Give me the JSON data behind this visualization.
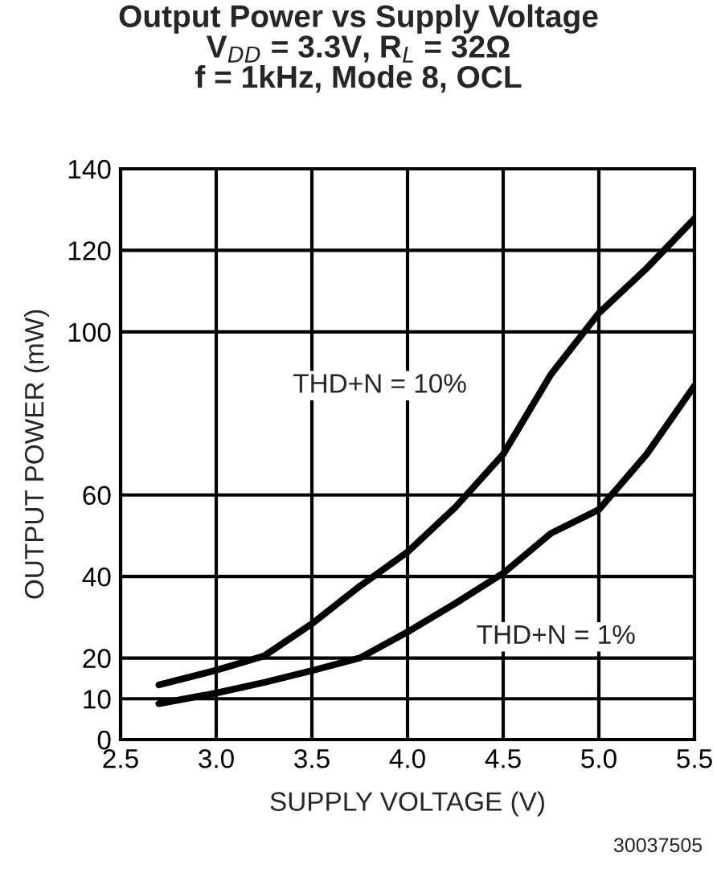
{
  "chart_data": {
    "type": "line",
    "title": "Output Power vs Supply Voltage\nV$_{DD}$ = 3.3V, R$_{L}$ = 32Ω\nf = 1kHz, Mode 8, OCL",
    "xlabel": "SUPPLY VOLTAGE (V)",
    "ylabel": "OUTPUT POWER (mW)",
    "x": [
      2.7,
      3.0,
      3.25,
      3.5,
      3.75,
      4.0,
      4.25,
      4.5,
      4.75,
      5.0,
      5.25,
      5.5
    ],
    "series": [
      {
        "color": "#000000",
        "values": [
          13.4,
          17,
          20.5,
          28.4,
          37.6,
          46,
          57,
          70,
          89.6,
          104.6,
          115.6,
          127.8
        ]
      },
      {
        "color": "#000000",
        "values": [
          8.8,
          11.4,
          14,
          16.9,
          20,
          26.4,
          33.4,
          40.8,
          50.6,
          56.4,
          70,
          86.8
        ]
      }
    ],
    "xlim": [
      2.5,
      5.5
    ],
    "xticks": [
      {
        "value": 2.5,
        "label": "2.5"
      },
      {
        "value": 3.0,
        "label": "3.0"
      },
      {
        "value": 3.5,
        "label": "3.5"
      },
      {
        "value": 4.0,
        "label": "4.0"
      },
      {
        "value": 4.5,
        "label": "4.5"
      },
      {
        "value": 5.0,
        "label": "5.0"
      },
      {
        "value": 5.5,
        "label": "5.5"
      }
    ],
    "ylim": [
      0,
      140
    ],
    "yticks": [
      0,
      10,
      20,
      40,
      60,
      100,
      120,
      140
    ],
    "grid": true,
    "line_style": "solid",
    "marker": "none",
    "annotations": [
      "THD+N = 10%",
      "THD+N = 1%",
      "30037505"
    ]
  }
}
